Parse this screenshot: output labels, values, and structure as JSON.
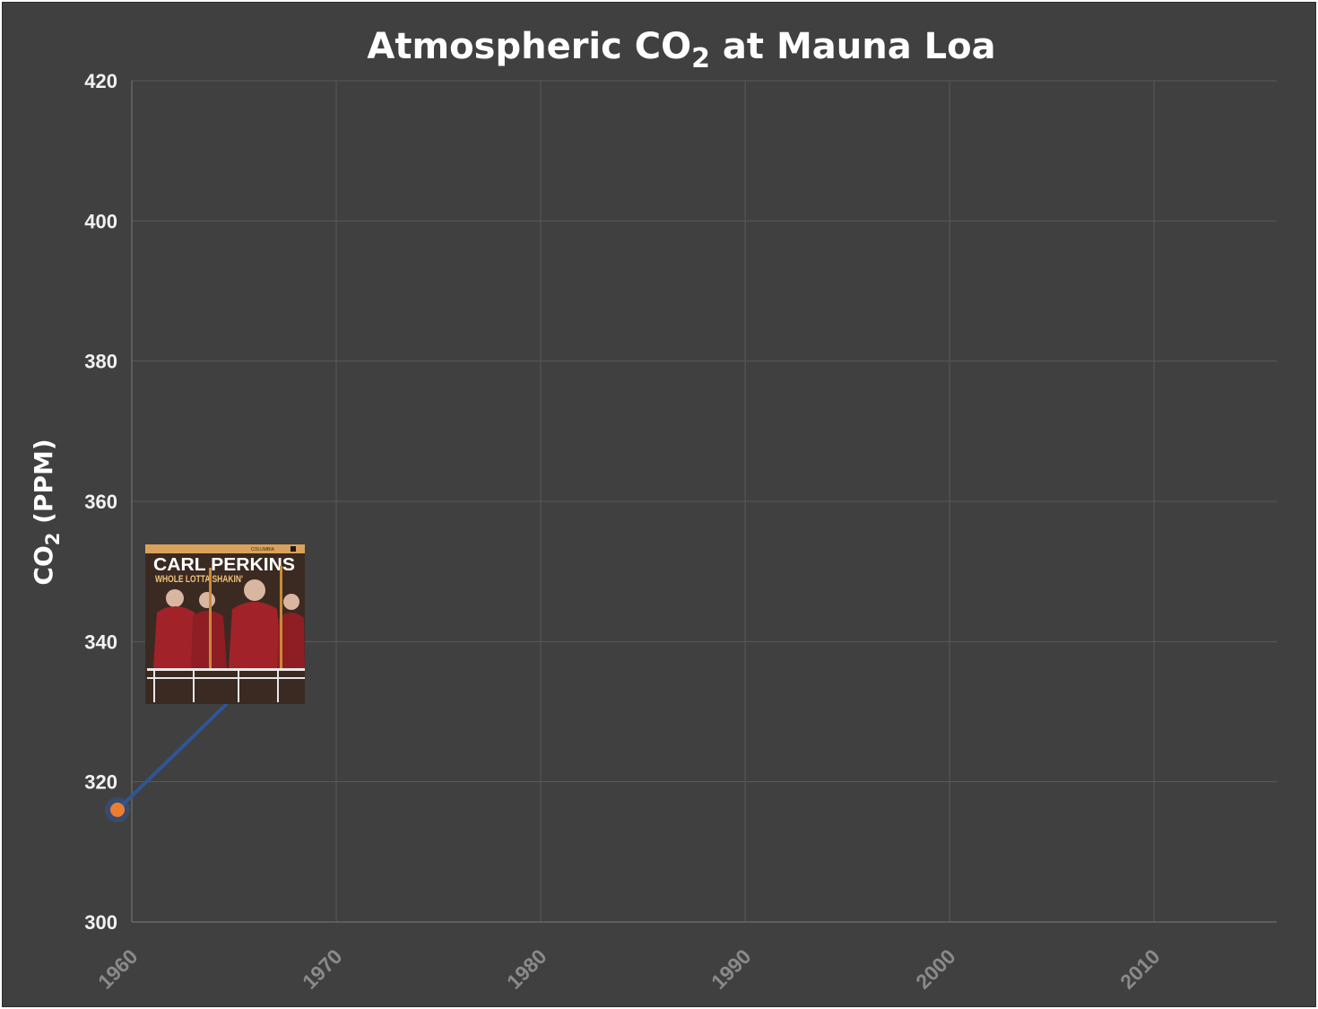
{
  "chart_data": {
    "type": "line",
    "title_main": "Atmospheric CO",
    "title_sub": "2",
    "title_rest": " at Mauna Loa",
    "ylabel_main": "CO",
    "ylabel_sub": "2",
    "ylabel_rest": "  (PPM)",
    "xlabel": "",
    "xlim": [
      1960,
      2016
    ],
    "ylim": [
      300,
      420
    ],
    "x_ticks": [
      "1960",
      "1970",
      "1980",
      "1990",
      "2000",
      "2010"
    ],
    "y_ticks": [
      "300",
      "320",
      "340",
      "360",
      "380",
      "400",
      "420"
    ],
    "grid": true,
    "series": [
      {
        "x": [
          1959.3,
          1964.6
        ],
        "y": [
          316,
          331
        ],
        "line_color": "#2f5597",
        "marker_color": "#ed7d31"
      }
    ],
    "annotation": {
      "type": "album-cover",
      "title": "CARL PERKINS",
      "subtitle": "WHOLE LOTTA SHAKIN'",
      "label": "COLUMBIA",
      "anchor_x": 1964.6,
      "anchor_y": 331,
      "colors": {
        "background": "#3b2a22",
        "band": "#d9a25c",
        "jacket": "#a2222a",
        "accent": "#f1c47a"
      }
    }
  }
}
